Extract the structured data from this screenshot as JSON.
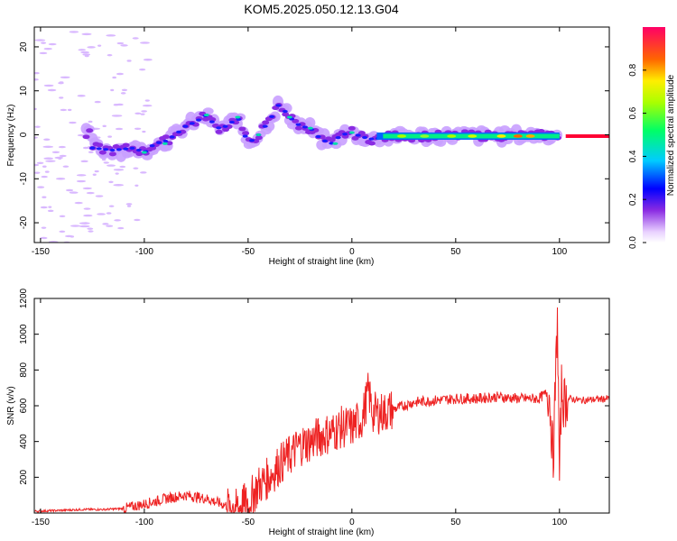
{
  "chart_data": [
    {
      "type": "heatmap",
      "title": "KOM5.2025.050.12.13.G04",
      "xlabel": "Height of straight line (km)",
      "ylabel": "Frequency (Hz)",
      "xlim": [
        -153,
        124
      ],
      "ylim": [
        -24.5,
        24.5
      ],
      "xticks": [
        -150,
        -100,
        -50,
        0,
        50,
        100
      ],
      "yticks": [
        -20,
        -10,
        0,
        10,
        20
      ],
      "grid": false,
      "colorbar": {
        "label": "Normalized spectral amplitude",
        "range": [
          0,
          1
        ],
        "ticks": [
          0.0,
          0.2,
          0.4,
          0.6,
          0.8
        ]
      },
      "ridge": [
        {
          "x": -125,
          "y": -3
        },
        {
          "x": -115,
          "y": -3.5
        },
        {
          "x": -105,
          "y": -3
        },
        {
          "x": -100,
          "y": -4
        },
        {
          "x": -95,
          "y": -2
        },
        {
          "x": -90,
          "y": -1.5
        },
        {
          "x": -85,
          "y": 0
        },
        {
          "x": -80,
          "y": 2
        },
        {
          "x": -75,
          "y": 3
        },
        {
          "x": -70,
          "y": 4.5
        },
        {
          "x": -65,
          "y": 1.5
        },
        {
          "x": -60,
          "y": 2
        },
        {
          "x": -55,
          "y": 4
        },
        {
          "x": -50,
          "y": -2
        },
        {
          "x": -45,
          "y": 0
        },
        {
          "x": -40,
          "y": 3
        },
        {
          "x": -35,
          "y": 7
        },
        {
          "x": -30,
          "y": 4
        },
        {
          "x": -25,
          "y": 2
        },
        {
          "x": -20,
          "y": 1.5
        },
        {
          "x": -15,
          "y": -1
        },
        {
          "x": -10,
          "y": -2
        },
        {
          "x": -5,
          "y": 0
        },
        {
          "x": 0,
          "y": 0.5
        },
        {
          "x": 5,
          "y": -0.5
        },
        {
          "x": 10,
          "y": -1
        },
        {
          "x": 20,
          "y": -0.3
        },
        {
          "x": 40,
          "y": -0.3
        },
        {
          "x": 60,
          "y": -0.2
        },
        {
          "x": 80,
          "y": -0.2
        },
        {
          "x": 100,
          "y": 0
        },
        {
          "x": 124,
          "y": 0
        }
      ]
    },
    {
      "type": "line",
      "xlabel": "Height of straight line (km)",
      "ylabel": "SNR (v/v)",
      "xlim": [
        -153,
        124
      ],
      "ylim": [
        0,
        1200
      ],
      "xticks": [
        -150,
        -100,
        -50,
        0,
        50,
        100
      ],
      "yticks": [
        200,
        400,
        600,
        800,
        1000,
        1200
      ],
      "color": "#ee2222",
      "grid": false,
      "series": [
        {
          "x": [
            -153,
            -140,
            -130,
            -120,
            -110,
            -100,
            -90,
            -80,
            -70,
            -60,
            -55,
            -50,
            -45,
            -40,
            -35,
            -30,
            -25,
            -20,
            -15,
            -10,
            -5,
            0,
            5,
            8,
            10,
            15,
            20,
            25,
            30,
            40,
            50,
            60,
            70,
            80,
            90,
            95,
            97,
            99,
            100,
            101,
            102,
            105,
            110,
            124
          ],
          "y": [
            10,
            15,
            20,
            20,
            25,
            50,
            80,
            100,
            80,
            40,
            30,
            60,
            150,
            200,
            270,
            320,
            380,
            400,
            430,
            450,
            480,
            480,
            530,
            680,
            560,
            560,
            580,
            600,
            620,
            630,
            640,
            640,
            650,
            640,
            640,
            680,
            300,
            1100,
            200,
            700,
            620,
            640,
            630,
            640
          ]
        }
      ]
    }
  ]
}
